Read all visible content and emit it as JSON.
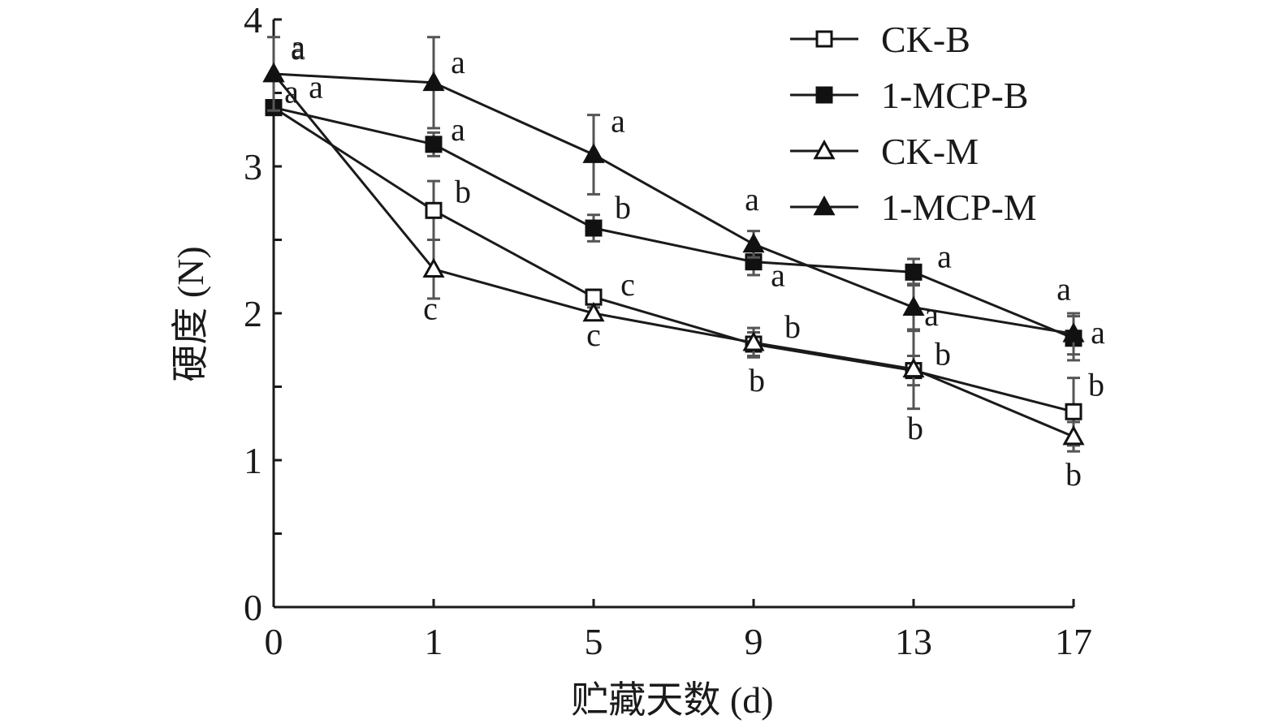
{
  "chart_data": {
    "type": "line",
    "title": "",
    "xlabel": "贮藏天数 (d)",
    "ylabel": "硬度 (N)",
    "categories": [
      "0",
      "1",
      "5",
      "9",
      "13",
      "17"
    ],
    "ylim": [
      0,
      4
    ],
    "yticks": [
      "0",
      "1",
      "2",
      "3",
      "4"
    ],
    "grid": false,
    "legend_position": "top-right",
    "series": [
      {
        "name": "CK-B",
        "marker": "open-square",
        "values": [
          3.4,
          2.7,
          2.11,
          1.79,
          1.61,
          1.33
        ],
        "errors": [
          0.0,
          0.2,
          0.05,
          0.08,
          0.1,
          0.23
        ],
        "labels": [
          "a",
          "b",
          "c",
          "b",
          "b",
          "b"
        ]
      },
      {
        "name": "1-MCP-B",
        "marker": "filled-square",
        "values": [
          3.4,
          3.15,
          2.58,
          2.35,
          2.28,
          1.83
        ],
        "errors": [
          0.0,
          0.08,
          0.09,
          0.09,
          0.09,
          0.15
        ],
        "labels": [
          "a",
          "a",
          "b",
          "a",
          "a",
          "a"
        ]
      },
      {
        "name": "CK-M",
        "marker": "open-triangle",
        "values": [
          3.63,
          2.3,
          2.0,
          1.8,
          1.62,
          1.16
        ],
        "errors": [
          0.25,
          0.2,
          0.04,
          0.1,
          0.27,
          0.1
        ],
        "labels": [
          "a",
          "c",
          "c",
          "b",
          "b",
          "b"
        ]
      },
      {
        "name": "1-MCP-M",
        "marker": "filled-triangle",
        "values": [
          3.63,
          3.57,
          3.08,
          2.47,
          2.04,
          1.86
        ],
        "errors": [
          0.0,
          0.31,
          0.27,
          0.09,
          0.16,
          0.14
        ],
        "labels": [
          "a",
          "a",
          "a",
          "a",
          "a",
          "a"
        ]
      }
    ]
  }
}
